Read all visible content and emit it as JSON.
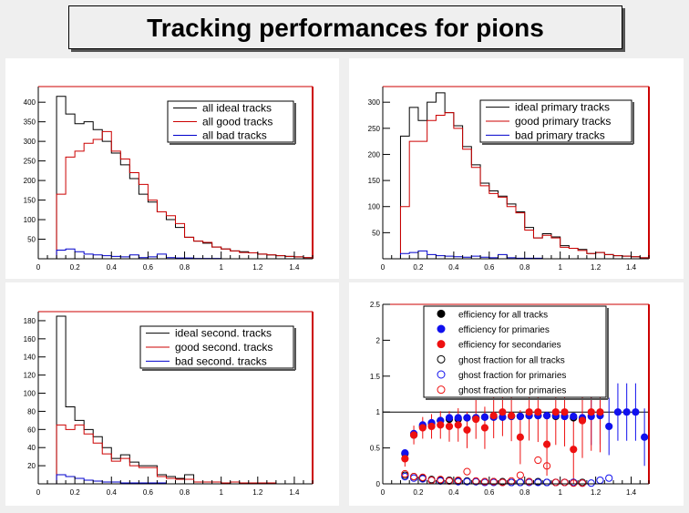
{
  "title": "Tracking performances for pions",
  "chart_data": [
    {
      "type": "histogram",
      "x_edges": [
        0.1,
        0.15,
        0.2,
        0.25,
        0.3,
        0.35,
        0.4,
        0.45,
        0.5,
        0.55,
        0.6,
        0.65,
        0.7,
        0.75,
        0.8,
        0.85,
        0.9,
        0.95,
        1.0,
        1.05,
        1.1,
        1.15,
        1.2,
        1.25,
        1.3,
        1.35,
        1.4,
        1.45,
        1.5
      ],
      "xlim": [
        0,
        1.5
      ],
      "ylim": [
        0,
        440
      ],
      "x_ticks": [
        "0",
        "0.2",
        "0.4",
        "0.6",
        "0.8",
        "1",
        "1.2",
        "1.4"
      ],
      "y_ticks": [
        "50",
        "100",
        "150",
        "200",
        "250",
        "300",
        "350",
        "400"
      ],
      "y_tick_values": [
        50,
        100,
        150,
        200,
        250,
        300,
        350,
        400
      ],
      "series": [
        {
          "name": "all ideal tracks",
          "color": "#000000",
          "values": [
            415,
            370,
            345,
            350,
            330,
            300,
            270,
            240,
            205,
            165,
            145,
            120,
            100,
            80,
            55,
            45,
            40,
            30,
            25,
            20,
            18,
            15,
            12,
            10,
            8,
            6,
            5,
            3
          ]
        },
        {
          "name": "all good tracks",
          "color": "#cc0000",
          "values": [
            165,
            260,
            275,
            295,
            305,
            325,
            275,
            255,
            220,
            190,
            150,
            120,
            110,
            90,
            55,
            45,
            42,
            30,
            25,
            20,
            16,
            15,
            12,
            10,
            8,
            6,
            5,
            3
          ]
        },
        {
          "name": "all bad tracks",
          "color": "#0000cc",
          "values": [
            22,
            25,
            18,
            12,
            10,
            8,
            6,
            5,
            10,
            3,
            5,
            12,
            3,
            2,
            2,
            1,
            1,
            1,
            0,
            0,
            0,
            0,
            0,
            0,
            0,
            0,
            0,
            0
          ]
        }
      ]
    },
    {
      "type": "histogram",
      "x_edges": [
        0.1,
        0.15,
        0.2,
        0.25,
        0.3,
        0.35,
        0.4,
        0.45,
        0.5,
        0.55,
        0.6,
        0.65,
        0.7,
        0.75,
        0.8,
        0.85,
        0.9,
        0.95,
        1.0,
        1.05,
        1.1,
        1.15,
        1.2,
        1.25,
        1.3,
        1.35,
        1.4,
        1.45,
        1.5
      ],
      "xlim": [
        0,
        1.5
      ],
      "ylim": [
        0,
        330
      ],
      "x_ticks": [
        "0",
        "0.2",
        "0.4",
        "0.6",
        "0.8",
        "1",
        "1.2",
        "1.4"
      ],
      "y_ticks": [
        "50",
        "100",
        "150",
        "200",
        "250",
        "300"
      ],
      "y_tick_values": [
        50,
        100,
        150,
        200,
        250,
        300
      ],
      "series": [
        {
          "name": "ideal primary tracks",
          "color": "#000000",
          "values": [
            235,
            290,
            265,
            300,
            318,
            280,
            255,
            215,
            180,
            145,
            130,
            120,
            105,
            90,
            60,
            40,
            48,
            42,
            25,
            20,
            18,
            10,
            12,
            8,
            6,
            5,
            4,
            2
          ]
        },
        {
          "name": "good primary tracks",
          "color": "#cc0000",
          "values": [
            100,
            225,
            225,
            265,
            275,
            280,
            250,
            210,
            175,
            140,
            125,
            118,
            100,
            88,
            55,
            40,
            45,
            40,
            22,
            20,
            16,
            10,
            12,
            8,
            6,
            5,
            4,
            2
          ]
        },
        {
          "name": "bad primary tracks",
          "color": "#0000cc",
          "values": [
            10,
            12,
            15,
            8,
            6,
            5,
            4,
            3,
            5,
            3,
            2,
            8,
            2,
            1,
            1,
            1,
            0,
            0,
            0,
            0,
            0,
            0,
            0,
            0,
            0,
            0,
            0,
            0
          ]
        }
      ]
    },
    {
      "type": "histogram",
      "x_edges": [
        0.1,
        0.15,
        0.2,
        0.25,
        0.3,
        0.35,
        0.4,
        0.45,
        0.5,
        0.55,
        0.6,
        0.65,
        0.7,
        0.75,
        0.8,
        0.85,
        0.9,
        0.95,
        1.0,
        1.05,
        1.1,
        1.15,
        1.2,
        1.25,
        1.3,
        1.35,
        1.4,
        1.45,
        1.5
      ],
      "xlim": [
        0,
        1.5
      ],
      "ylim": [
        0,
        190
      ],
      "x_ticks": [
        "0",
        "0.2",
        "0.4",
        "0.6",
        "0.8",
        "1",
        "1.2",
        "1.4"
      ],
      "y_ticks": [
        "20",
        "40",
        "60",
        "80",
        "100",
        "120",
        "140",
        "160",
        "180"
      ],
      "y_tick_values": [
        20,
        40,
        60,
        80,
        100,
        120,
        140,
        160,
        180
      ],
      "series": [
        {
          "name": "ideal second. tracks",
          "color": "#000000",
          "values": [
            185,
            85,
            70,
            60,
            52,
            40,
            28,
            32,
            24,
            20,
            20,
            10,
            8,
            6,
            10,
            2,
            2,
            2,
            1,
            2,
            1,
            1,
            1,
            1,
            0,
            0,
            0,
            0
          ]
        },
        {
          "name": "good second. tracks",
          "color": "#cc0000",
          "values": [
            65,
            60,
            65,
            55,
            45,
            33,
            25,
            28,
            20,
            18,
            18,
            8,
            6,
            5,
            5,
            2,
            2,
            2,
            1,
            2,
            1,
            1,
            1,
            1,
            0,
            0,
            0,
            0
          ]
        },
        {
          "name": "bad second. tracks",
          "color": "#0000cc",
          "values": [
            10,
            8,
            6,
            4,
            3,
            2,
            2,
            1,
            1,
            1,
            1,
            1,
            0,
            0,
            0,
            0,
            0,
            0,
            0,
            0,
            0,
            0,
            0,
            0,
            0,
            0,
            0,
            0
          ]
        }
      ]
    },
    {
      "type": "scatter",
      "xlim": [
        0,
        1.5
      ],
      "ylim": [
        0,
        2.5
      ],
      "x_ticks": [
        "0",
        "0.2",
        "0.4",
        "0.6",
        "0.8",
        "1",
        "1.2",
        "1.4"
      ],
      "y_ticks": [
        "0",
        "0.5",
        "1",
        "1.5",
        "2",
        "2.5"
      ],
      "y_tick_values": [
        0,
        0.5,
        1,
        1.5,
        2,
        2.5
      ],
      "reference_line": 1,
      "series": [
        {
          "name": "efficiency for all tracks",
          "color": "#000000",
          "filled": true,
          "x": [
            0.125,
            0.175,
            0.225,
            0.275,
            0.325,
            0.375,
            0.425,
            0.475,
            0.525,
            0.575,
            0.625,
            0.675,
            0.725,
            0.775,
            0.825,
            0.875,
            0.925,
            0.975,
            1.025,
            1.075,
            1.125
          ],
          "y": [
            0.42,
            0.68,
            0.8,
            0.84,
            0.88,
            0.9,
            0.9,
            0.92,
            0.92,
            0.93,
            0.93,
            0.93,
            0.94,
            0.94,
            0.95,
            0.95,
            0.95,
            0.94,
            0.94,
            0.92,
            0.9
          ]
        },
        {
          "name": "efficiency for primaries",
          "color": "#1010ee",
          "filled": true,
          "x": [
            0.125,
            0.175,
            0.225,
            0.275,
            0.325,
            0.375,
            0.425,
            0.475,
            0.525,
            0.575,
            0.625,
            0.675,
            0.725,
            0.775,
            0.825,
            0.875,
            0.925,
            0.975,
            1.025,
            1.075,
            1.125,
            1.175,
            1.225,
            1.275,
            1.325,
            1.375,
            1.425,
            1.475
          ],
          "y": [
            0.43,
            0.7,
            0.82,
            0.85,
            0.88,
            0.92,
            0.92,
            0.92,
            0.92,
            0.93,
            0.93,
            0.93,
            0.94,
            0.94,
            0.95,
            0.95,
            0.95,
            0.95,
            0.94,
            0.94,
            0.92,
            0.94,
            0.95,
            0.8,
            1.0,
            1.0,
            1.0,
            0.65
          ]
        },
        {
          "name": "efficiency for secondaries",
          "color": "#ee1111",
          "filled": true,
          "x": [
            0.125,
            0.175,
            0.225,
            0.275,
            0.325,
            0.375,
            0.425,
            0.475,
            0.525,
            0.575,
            0.625,
            0.675,
            0.725,
            0.775,
            0.825,
            0.875,
            0.925,
            0.975,
            1.025,
            1.075,
            1.125,
            1.175,
            1.225
          ],
          "y": [
            0.35,
            0.68,
            0.78,
            0.8,
            0.82,
            0.8,
            0.82,
            0.75,
            0.9,
            0.78,
            0.95,
            1.0,
            0.95,
            0.65,
            1.0,
            1.0,
            0.55,
            1.0,
            1.0,
            0.48,
            0.88,
            1.0,
            1.0
          ]
        },
        {
          "name": "ghost fraction for all tracks",
          "color": "#000000",
          "filled": false,
          "x": [
            0.125,
            0.175,
            0.225,
            0.275,
            0.325,
            0.375,
            0.425,
            0.475,
            0.525,
            0.575,
            0.625,
            0.675,
            0.725,
            0.775,
            0.825,
            0.875,
            0.925,
            0.975,
            1.025,
            1.075,
            1.125
          ],
          "y": [
            0.12,
            0.1,
            0.08,
            0.06,
            0.05,
            0.05,
            0.04,
            0.04,
            0.03,
            0.03,
            0.03,
            0.03,
            0.02,
            0.02,
            0.03,
            0.03,
            0.02,
            0.02,
            0.02,
            0.02,
            0.02
          ]
        },
        {
          "name": "ghost fraction for primaries",
          "color": "#1010ee",
          "filled": false,
          "x": [
            0.125,
            0.175,
            0.225,
            0.275,
            0.325,
            0.375,
            0.425,
            0.475,
            0.525,
            0.575,
            0.625,
            0.675,
            0.725,
            0.775,
            0.825,
            0.875,
            0.925,
            0.975,
            1.025,
            1.075,
            1.125,
            1.175,
            1.225,
            1.275
          ],
          "y": [
            0.1,
            0.08,
            0.07,
            0.05,
            0.04,
            0.04,
            0.03,
            0.03,
            0.03,
            0.02,
            0.02,
            0.02,
            0.02,
            0.02,
            0.02,
            0.02,
            0.02,
            0.02,
            0.02,
            0.02,
            0.01,
            0.01,
            0.05,
            0.08
          ]
        },
        {
          "name": "ghost fraction for primaries",
          "color": "#ee1111",
          "filled": false,
          "x": [
            0.125,
            0.175,
            0.225,
            0.275,
            0.325,
            0.375,
            0.425,
            0.475,
            0.525,
            0.575,
            0.625,
            0.675,
            0.725,
            0.775,
            0.825,
            0.875,
            0.925,
            0.975,
            1.025,
            1.075,
            1.125
          ],
          "y": [
            0.14,
            0.1,
            0.09,
            0.05,
            0.06,
            0.04,
            0.05,
            0.17,
            0.04,
            0.03,
            0.03,
            0.02,
            0.04,
            0.12,
            0.03,
            0.33,
            0.25,
            0.02,
            0.02,
            0.01,
            0.01
          ]
        }
      ]
    }
  ]
}
